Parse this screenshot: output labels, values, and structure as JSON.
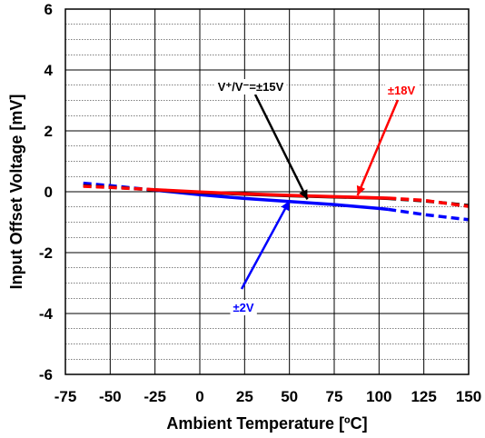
{
  "chart_data": {
    "type": "line",
    "title": "",
    "xlabel": "Ambient Temperature [ºC]",
    "ylabel": "Input Offset Voltage [mV]",
    "xlim": [
      -75,
      150
    ],
    "ylim": [
      -6,
      6
    ],
    "x_ticks": [
      "-75",
      "-50",
      "-25",
      "0",
      "25",
      "50",
      "75",
      "100",
      "125",
      "150"
    ],
    "y_ticks": [
      "6",
      "4",
      "2",
      "0",
      "-2",
      "-4",
      "-6"
    ],
    "grid": true,
    "series": [
      {
        "name": "±2V",
        "color": "#0000ff",
        "solid": [
          [
            -25,
            0.05
          ],
          [
            0,
            -0.1
          ],
          [
            25,
            -0.22
          ],
          [
            50,
            -0.32
          ],
          [
            75,
            -0.42
          ],
          [
            100,
            -0.55
          ],
          [
            105,
            -0.58
          ]
        ],
        "dashed_low": [
          [
            -65,
            0.28
          ],
          [
            -50,
            0.2
          ],
          [
            -25,
            0.05
          ]
        ],
        "dashed_high": [
          [
            105,
            -0.58
          ],
          [
            125,
            -0.75
          ],
          [
            150,
            -0.92
          ]
        ]
      },
      {
        "name": "V⁺/V⁻=±15V",
        "color": "#000000",
        "solid": [
          [
            -25,
            0.06
          ],
          [
            0,
            -0.02
          ],
          [
            25,
            -0.08
          ],
          [
            50,
            -0.13
          ],
          [
            75,
            -0.17
          ],
          [
            100,
            -0.21
          ],
          [
            105,
            -0.22
          ]
        ],
        "dashed_low": [
          [
            -65,
            0.2
          ],
          [
            -50,
            0.15
          ],
          [
            -25,
            0.06
          ]
        ],
        "dashed_high": [
          [
            105,
            -0.22
          ],
          [
            125,
            -0.3
          ],
          [
            150,
            -0.45
          ]
        ]
      },
      {
        "name": "±18V",
        "color": "#ff0000",
        "solid": [
          [
            -25,
            0.07
          ],
          [
            0,
            -0.01
          ],
          [
            25,
            -0.07
          ],
          [
            50,
            -0.12
          ],
          [
            75,
            -0.16
          ],
          [
            100,
            -0.2
          ],
          [
            105,
            -0.21
          ]
        ],
        "dashed_low": [
          [
            -65,
            0.18
          ],
          [
            -50,
            0.14
          ],
          [
            -25,
            0.07
          ]
        ],
        "dashed_high": [
          [
            105,
            -0.21
          ],
          [
            125,
            -0.28
          ],
          [
            150,
            -0.48
          ]
        ]
      }
    ],
    "annotations": [
      {
        "text": "V⁺/V⁻=±15V",
        "color": "#000000",
        "target": [
          60,
          -0.25
        ]
      },
      {
        "text": "±18V",
        "color": "#ff0000",
        "target": [
          88,
          -0.12
        ]
      },
      {
        "text": "±2V",
        "color": "#0000ff",
        "target": [
          50,
          -0.3
        ]
      }
    ]
  }
}
